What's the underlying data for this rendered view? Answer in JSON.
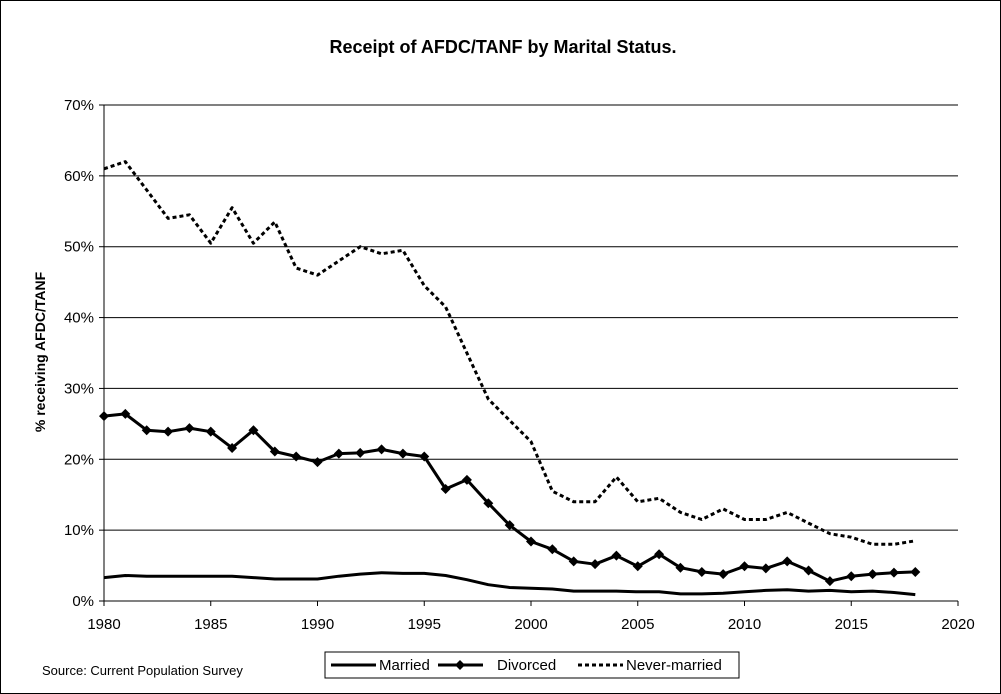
{
  "chart_data": {
    "type": "line",
    "title": "Receipt of AFDC/TANF by Marital Status.",
    "xlabel": "",
    "ylabel": "% receiving AFDC/TANF",
    "xlim": [
      1980,
      2020
    ],
    "ylim": [
      0,
      70
    ],
    "x_ticks": [
      "1980",
      "1985",
      "1990",
      "1995",
      "2000",
      "2005",
      "2010",
      "2015",
      "2020"
    ],
    "y_ticks": [
      "0%",
      "10%",
      "20%",
      "30%",
      "40%",
      "50%",
      "60%",
      "70%"
    ],
    "grid": true,
    "source": "Source: Current Population Survey",
    "legend": {
      "placement": "bottom"
    },
    "x": [
      1980,
      1981,
      1982,
      1983,
      1984,
      1985,
      1986,
      1987,
      1988,
      1989,
      1990,
      1991,
      1992,
      1993,
      1994,
      1995,
      1996,
      1997,
      1998,
      1999,
      2000,
      2001,
      2002,
      2003,
      2004,
      2005,
      2006,
      2007,
      2008,
      2009,
      2010,
      2011,
      2012,
      2013,
      2014,
      2015,
      2016,
      2017,
      2018
    ],
    "series": [
      {
        "name": "Married",
        "style": "solid",
        "values": [
          3.3,
          3.6,
          3.5,
          3.5,
          3.5,
          3.5,
          3.5,
          3.3,
          3.1,
          3.1,
          3.1,
          3.5,
          3.8,
          4.0,
          3.9,
          3.9,
          3.6,
          3.0,
          2.3,
          1.9,
          1.8,
          1.7,
          1.4,
          1.4,
          1.4,
          1.3,
          1.3,
          1.0,
          1.0,
          1.1,
          1.3,
          1.5,
          1.6,
          1.4,
          1.5,
          1.3,
          1.4,
          1.2,
          0.9
        ]
      },
      {
        "name": "Divorced",
        "style": "diamond",
        "values": [
          26.1,
          26.4,
          24.1,
          23.9,
          24.4,
          23.9,
          21.6,
          24.1,
          21.1,
          20.4,
          19.6,
          20.8,
          20.9,
          21.4,
          20.8,
          20.4,
          15.8,
          17.1,
          13.8,
          10.7,
          8.4,
          7.3,
          5.6,
          5.2,
          6.4,
          4.9,
          6.6,
          4.7,
          4.1,
          3.8,
          4.9,
          4.6,
          5.6,
          4.3,
          2.8,
          3.5,
          3.8,
          4.0,
          4.1
        ]
      },
      {
        "name": "Never-married",
        "style": "dashed",
        "values": [
          61.0,
          62.0,
          58.0,
          54.0,
          54.5,
          50.5,
          55.5,
          50.5,
          53.5,
          47.0,
          46.0,
          48.0,
          50.0,
          49.0,
          49.5,
          44.5,
          41.5,
          35.0,
          28.5,
          25.5,
          22.5,
          15.5,
          14.0,
          14.0,
          17.5,
          14.0,
          14.5,
          12.5,
          11.5,
          13.0,
          11.5,
          11.5,
          12.5,
          11.0,
          9.5,
          9.0,
          8.0,
          8.0,
          8.5
        ]
      }
    ]
  }
}
